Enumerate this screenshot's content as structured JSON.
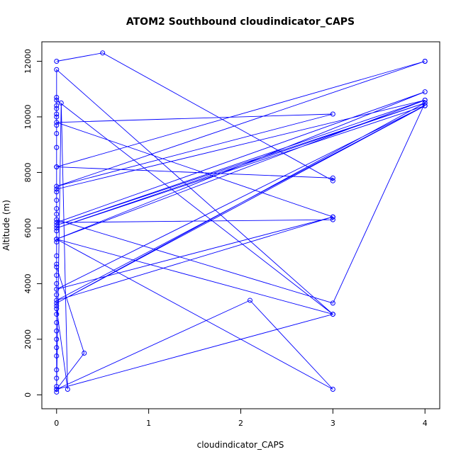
{
  "chart_data": {
    "type": "line",
    "title": "ATOM2 Southbound cloudindicator_CAPS",
    "xlabel": "cloudindicator_CAPS",
    "ylabel": "Altitude (m)",
    "xlim": [
      -0.16,
      4.16
    ],
    "ylim": [
      -500,
      12700
    ],
    "xticks": [
      0,
      1,
      2,
      3,
      4
    ],
    "yticks": [
      0,
      2000,
      4000,
      6000,
      8000,
      10000,
      12000
    ],
    "grid": false,
    "legend": "none",
    "series_color": "#0000ff",
    "marker": "open-circle",
    "points": [
      {
        "x": 0,
        "y": 12000
      },
      {
        "x": 0.5,
        "y": 12300
      },
      {
        "x": 3,
        "y": 7700
      },
      {
        "x": 3,
        "y": 7800
      },
      {
        "x": 0,
        "y": 8200
      },
      {
        "x": 4,
        "y": 12000
      },
      {
        "x": 4,
        "y": 12000
      },
      {
        "x": 0,
        "y": 7500
      },
      {
        "x": 3,
        "y": 10100
      },
      {
        "x": 0,
        "y": 9800
      },
      {
        "x": 3,
        "y": 6400
      },
      {
        "x": 3,
        "y": 6300
      },
      {
        "x": 0,
        "y": 6200
      },
      {
        "x": 4,
        "y": 10900
      },
      {
        "x": 0,
        "y": 5600
      },
      {
        "x": 4,
        "y": 10600
      },
      {
        "x": 0,
        "y": 7400
      },
      {
        "x": 4,
        "y": 10600
      },
      {
        "x": 0,
        "y": 6100
      },
      {
        "x": 4,
        "y": 10500
      },
      {
        "x": 0,
        "y": 6000
      },
      {
        "x": 4,
        "y": 10400
      },
      {
        "x": 0,
        "y": 3800
      },
      {
        "x": 3,
        "y": 6400
      },
      {
        "x": 0,
        "y": 3400
      },
      {
        "x": 4,
        "y": 10400
      },
      {
        "x": 0,
        "y": 3300
      },
      {
        "x": 4,
        "y": 10500
      },
      {
        "x": 3,
        "y": 3300
      },
      {
        "x": 0,
        "y": 6300
      },
      {
        "x": 0,
        "y": 10700
      },
      {
        "x": 0,
        "y": 10600
      },
      {
        "x": 3,
        "y": 2900
      },
      {
        "x": 0,
        "y": 200
      },
      {
        "x": 0.05,
        "y": 10500
      },
      {
        "x": 0.12,
        "y": 200
      },
      {
        "x": 0,
        "y": 3100
      },
      {
        "x": 0,
        "y": 4600
      },
      {
        "x": 0.3,
        "y": 1500
      },
      {
        "x": 0,
        "y": 200
      },
      {
        "x": 2.1,
        "y": 3400
      },
      {
        "x": 3,
        "y": 200
      },
      {
        "x": 0,
        "y": 5600
      },
      {
        "x": 3,
        "y": 2900
      },
      {
        "x": 0,
        "y": 11700
      },
      {
        "x": 0,
        "y": 10400
      },
      {
        "x": 0,
        "y": 10300
      },
      {
        "x": 0,
        "y": 10100
      },
      {
        "x": 0,
        "y": 10000
      },
      {
        "x": 0,
        "y": 9700
      },
      {
        "x": 0,
        "y": 9400
      },
      {
        "x": 0,
        "y": 8900
      },
      {
        "x": 0,
        "y": 8200
      },
      {
        "x": 0,
        "y": 7300
      },
      {
        "x": 0,
        "y": 7000
      },
      {
        "x": 0,
        "y": 6700
      },
      {
        "x": 0,
        "y": 6500
      },
      {
        "x": 0,
        "y": 5900
      },
      {
        "x": 0,
        "y": 5500
      },
      {
        "x": 0,
        "y": 5000
      },
      {
        "x": 0,
        "y": 4700
      },
      {
        "x": 0,
        "y": 4300
      },
      {
        "x": 0,
        "y": 4000
      },
      {
        "x": 0,
        "y": 3600
      },
      {
        "x": 0,
        "y": 3200
      },
      {
        "x": 0,
        "y": 2900
      },
      {
        "x": 0,
        "y": 2600
      },
      {
        "x": 0,
        "y": 2300
      },
      {
        "x": 0,
        "y": 2000
      },
      {
        "x": 0,
        "y": 1700
      },
      {
        "x": 0,
        "y": 1400
      },
      {
        "x": 0,
        "y": 900
      },
      {
        "x": 0,
        "y": 600
      },
      {
        "x": 0,
        "y": 300
      },
      {
        "x": 0,
        "y": 100
      }
    ]
  }
}
